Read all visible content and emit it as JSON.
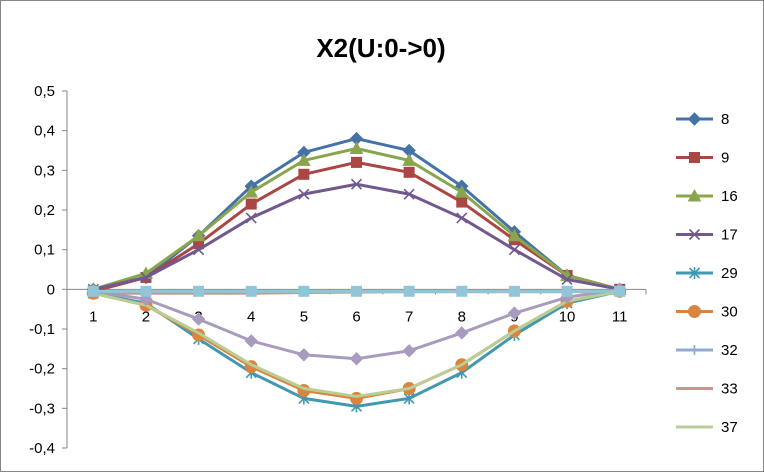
{
  "chart_data": {
    "type": "line",
    "title": "X2(U:0->0)",
    "xlabel": "",
    "ylabel": "",
    "categories": [
      "1",
      "2",
      "3",
      "4",
      "5",
      "6",
      "7",
      "8",
      "9",
      "10",
      "11"
    ],
    "ylim": [
      -0.4,
      0.5
    ],
    "yticks": [
      "-0,4",
      "-0,3",
      "-0,2",
      "-0,1",
      "0",
      "0,1",
      "0,2",
      "0,3",
      "0,4",
      "0,5"
    ],
    "grid": false,
    "legend": "right",
    "series": [
      {
        "name": "8",
        "color": "#4572A7",
        "marker": "diamond",
        "values": [
          0,
          0.03,
          0.135,
          0.26,
          0.345,
          0.38,
          0.35,
          0.26,
          0.145,
          0.035,
          0
        ]
      },
      {
        "name": "9",
        "color": "#AA4643",
        "marker": "square",
        "values": [
          -0.005,
          0.03,
          0.115,
          0.215,
          0.29,
          0.32,
          0.295,
          0.22,
          0.125,
          0.035,
          0
        ]
      },
      {
        "name": "16",
        "color": "#89A54E",
        "marker": "triangle",
        "values": [
          0,
          0.04,
          0.135,
          0.245,
          0.325,
          0.355,
          0.325,
          0.245,
          0.135,
          0.035,
          0
        ]
      },
      {
        "name": "17",
        "color": "#71588F",
        "marker": "x",
        "values": [
          0,
          0.03,
          0.1,
          0.18,
          0.24,
          0.265,
          0.24,
          0.18,
          0.1,
          0.025,
          0
        ]
      },
      {
        "name": "29",
        "color": "#4198AF",
        "marker": "star",
        "values": [
          -0.01,
          -0.035,
          -0.125,
          -0.21,
          -0.275,
          -0.295,
          -0.275,
          -0.21,
          -0.115,
          -0.035,
          -0.005
        ]
      },
      {
        "name": "30",
        "color": "#DB843D",
        "marker": "circle",
        "values": [
          -0.01,
          -0.04,
          -0.115,
          -0.195,
          -0.255,
          -0.275,
          -0.25,
          -0.19,
          -0.105,
          -0.03,
          -0.005
        ]
      },
      {
        "name": "32",
        "color": "#93A9CF",
        "marker": "plus",
        "values": [
          -0.005,
          -0.005,
          -0.005,
          -0.005,
          -0.005,
          -0.005,
          -0.005,
          -0.005,
          -0.005,
          -0.005,
          -0.005
        ]
      },
      {
        "name": "33",
        "color": "#D19392",
        "marker": "none",
        "values": [
          -0.01,
          -0.01,
          -0.01,
          -0.01,
          -0.008,
          -0.007,
          -0.006,
          -0.006,
          -0.006,
          -0.006,
          -0.005
        ]
      },
      {
        "name": "37",
        "color": "#B9CD96",
        "marker": "none",
        "values": [
          -0.01,
          -0.04,
          -0.11,
          -0.19,
          -0.25,
          -0.27,
          -0.25,
          -0.19,
          -0.105,
          -0.03,
          -0.005
        ]
      },
      {
        "name": "",
        "color": "#A99BBD",
        "marker": "diamond",
        "values": [
          -0.005,
          -0.025,
          -0.075,
          -0.13,
          -0.165,
          -0.175,
          -0.155,
          -0.11,
          -0.06,
          -0.02,
          0
        ]
      },
      {
        "name": "",
        "color": "#92C5D8",
        "marker": "square",
        "values": [
          -0.005,
          -0.005,
          -0.005,
          -0.005,
          -0.005,
          -0.005,
          -0.005,
          -0.005,
          -0.005,
          -0.005,
          -0.005
        ]
      }
    ]
  }
}
